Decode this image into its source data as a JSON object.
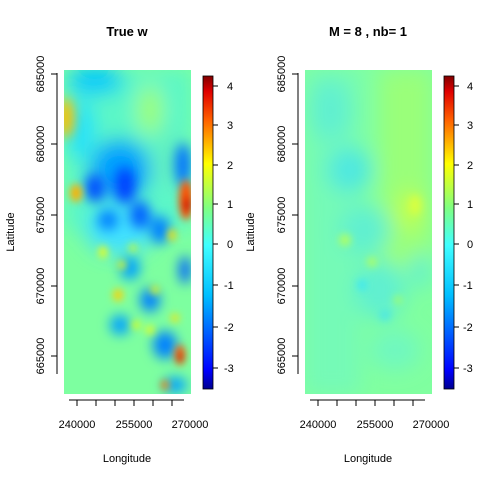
{
  "chart_data": [
    {
      "type": "heatmap",
      "title": "True w",
      "xlabel": "Longitude",
      "ylabel": "Latitude",
      "xticks": [
        "240000",
        "255000",
        "270000"
      ],
      "yticks": [
        "665000",
        "670000",
        "675000",
        "680000",
        "685000"
      ],
      "xlim": [
        236000,
        273000
      ],
      "ylim": [
        661000,
        686500
      ],
      "colorbar": {
        "min": -3.7,
        "max": 4.3,
        "ticks": [
          "4",
          "3",
          "2",
          "1",
          "0",
          "-1",
          "-2",
          "-3"
        ]
      },
      "notable_values": [
        {
          "lon": 239000,
          "lat": 682000,
          "w": 1.8,
          "kind": "high"
        },
        {
          "lon": 241500,
          "lat": 676500,
          "w": 2.5,
          "kind": "high"
        },
        {
          "lon": 271000,
          "lat": 676000,
          "w": 3.2,
          "kind": "high"
        },
        {
          "lon": 269500,
          "lat": 665000,
          "w": 3.5,
          "kind": "high"
        },
        {
          "lon": 258000,
          "lat": 672000,
          "w": 1.5,
          "kind": "high"
        },
        {
          "lon": 248000,
          "lat": 685000,
          "w": -1.5,
          "kind": "low"
        },
        {
          "lon": 247000,
          "lat": 675000,
          "w": -2.0,
          "kind": "low"
        },
        {
          "lon": 254000,
          "lat": 676000,
          "w": -2.0,
          "kind": "low"
        },
        {
          "lon": 250000,
          "lat": 670000,
          "w": -1.8,
          "kind": "low"
        }
      ]
    },
    {
      "type": "heatmap",
      "title": "M =  8 , nb= 1",
      "xlabel": "Longitude",
      "ylabel": "Latitude",
      "xticks": [
        "240000",
        "255000",
        "270000"
      ],
      "yticks": [
        "665000",
        "670000",
        "675000",
        "680000",
        "685000"
      ],
      "xlim": [
        236000,
        273000
      ],
      "ylim": [
        661000,
        686500
      ],
      "colorbar": {
        "min": -3.7,
        "max": 4.3,
        "ticks": [
          "4",
          "3",
          "2",
          "1",
          "0",
          "-1",
          "-2",
          "-3"
        ]
      },
      "value_range_shown": [
        -0.8,
        0.8
      ]
    }
  ]
}
